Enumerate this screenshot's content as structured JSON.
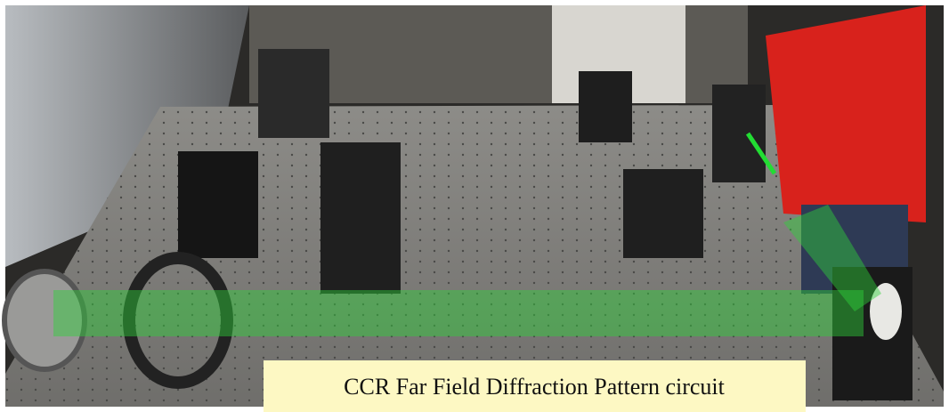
{
  "caption": "CCR Far Field Diffraction Pattern circuit"
}
